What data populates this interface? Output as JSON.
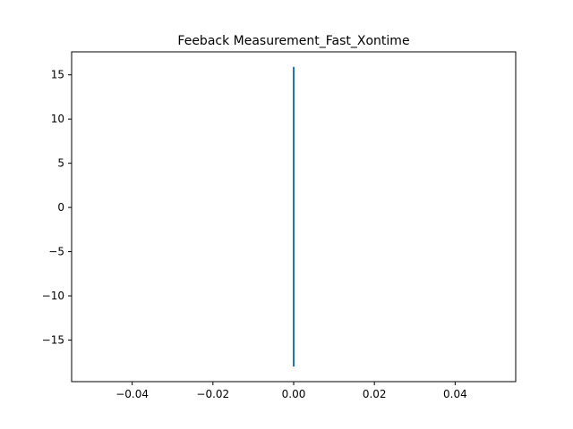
{
  "chart_data": {
    "type": "line",
    "title": "Feeback Measurement_Fast_Xontime",
    "xlabel": "",
    "ylabel": "",
    "xlim": [
      -0.055,
      0.055
    ],
    "ylim": [
      -19.7,
      17.6
    ],
    "x_ticks": [
      -0.04,
      -0.02,
      0.0,
      0.02,
      0.04
    ],
    "x_tick_labels": [
      "−0.04",
      "−0.02",
      "0.00",
      "0.02",
      "0.04"
    ],
    "y_ticks": [
      15,
      10,
      5,
      0,
      -5,
      -10,
      -15
    ],
    "y_tick_labels": [
      "15",
      "10",
      "5",
      "0",
      "−5",
      "−10",
      "−15"
    ],
    "grid": false,
    "series": [
      {
        "color": "#1f77b4",
        "points": [
          {
            "x": 0.0,
            "y": -18.0
          },
          {
            "x": 0.0,
            "y": 15.9
          }
        ]
      }
    ]
  }
}
